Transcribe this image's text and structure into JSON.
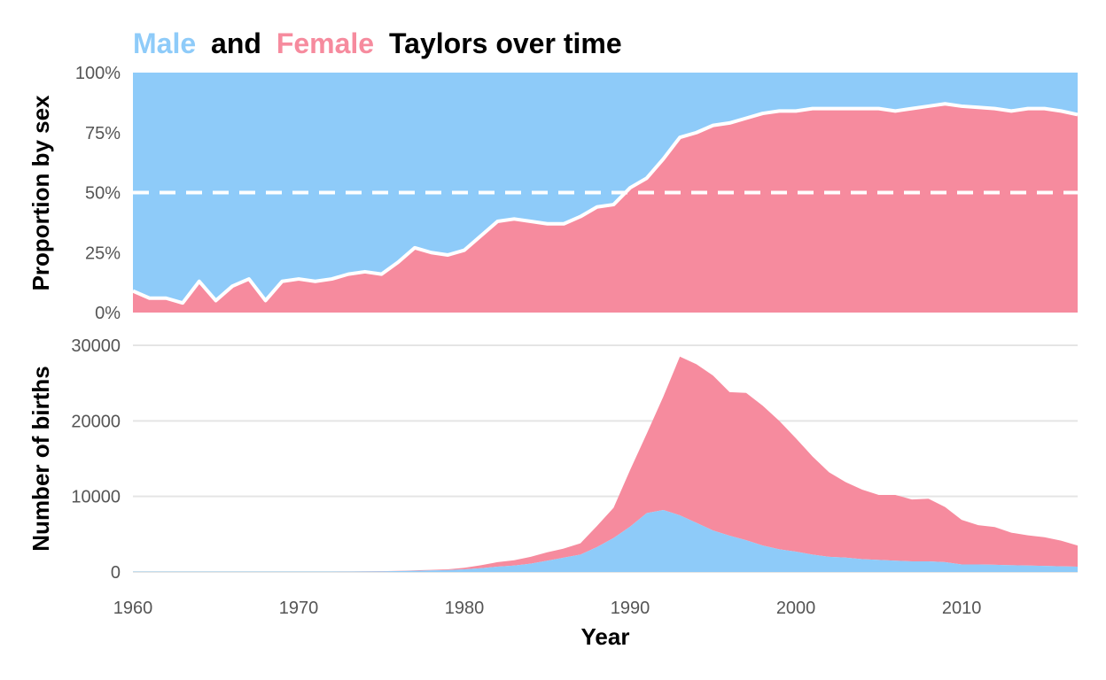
{
  "title": {
    "male_word": "Male",
    "and_word": "and",
    "female_word": "Female",
    "rest": "Taylors over time"
  },
  "colors": {
    "male": "#8ECBF9",
    "female": "#F68B9E",
    "text": "#000000",
    "tick": "#555555",
    "grid": "#E5E5E5",
    "divider": "#FFFFFF"
  },
  "chart_data": [
    {
      "type": "area",
      "stacked": true,
      "ylabel": "Proportion by sex",
      "ylim": [
        0,
        1
      ],
      "yticks": [
        0,
        0.25,
        0.5,
        0.75,
        1
      ],
      "ytick_labels": [
        "0%",
        "25%",
        "50%",
        "75%",
        "100%"
      ],
      "reference_line": {
        "y": 0.5,
        "style": "dashed",
        "color": "#FFFFFF"
      },
      "x": [
        1960,
        1961,
        1962,
        1963,
        1964,
        1965,
        1966,
        1967,
        1968,
        1969,
        1970,
        1971,
        1972,
        1973,
        1974,
        1975,
        1976,
        1977,
        1978,
        1979,
        1980,
        1981,
        1982,
        1983,
        1984,
        1985,
        1986,
        1987,
        1988,
        1989,
        1990,
        1991,
        1992,
        1993,
        1994,
        1995,
        1996,
        1997,
        1998,
        1999,
        2000,
        2001,
        2002,
        2003,
        2004,
        2005,
        2006,
        2007,
        2008,
        2009,
        2010,
        2011,
        2012,
        2013,
        2014,
        2015,
        2016,
        2017
      ],
      "series": [
        {
          "sex": "Female",
          "values": [
            0.09,
            0.06,
            0.06,
            0.04,
            0.13,
            0.05,
            0.11,
            0.14,
            0.05,
            0.13,
            0.14,
            0.13,
            0.14,
            0.16,
            0.17,
            0.16,
            0.21,
            0.27,
            0.25,
            0.24,
            0.26,
            0.32,
            0.38,
            0.39,
            0.38,
            0.37,
            0.37,
            0.4,
            0.44,
            0.45,
            0.52,
            0.56,
            0.64,
            0.73,
            0.75,
            0.78,
            0.79,
            0.81,
            0.83,
            0.84,
            0.84,
            0.85,
            0.85,
            0.85,
            0.85,
            0.85,
            0.84,
            0.85,
            0.86,
            0.87,
            0.86,
            0.855,
            0.85,
            0.84,
            0.85,
            0.85,
            0.84,
            0.825
          ]
        },
        {
          "sex": "Male",
          "values": [
            0.91,
            0.94,
            0.94,
            0.96,
            0.87,
            0.95,
            0.89,
            0.86,
            0.95,
            0.87,
            0.86,
            0.87,
            0.86,
            0.84,
            0.83,
            0.84,
            0.79,
            0.73,
            0.75,
            0.76,
            0.74,
            0.68,
            0.62,
            0.61,
            0.62,
            0.63,
            0.63,
            0.6,
            0.56,
            0.55,
            0.48,
            0.44,
            0.36,
            0.27,
            0.25,
            0.22,
            0.21,
            0.19,
            0.17,
            0.16,
            0.16,
            0.15,
            0.15,
            0.15,
            0.15,
            0.15,
            0.16,
            0.15,
            0.14,
            0.13,
            0.14,
            0.145,
            0.15,
            0.16,
            0.15,
            0.15,
            0.16,
            0.175
          ]
        }
      ]
    },
    {
      "type": "area",
      "stacked": true,
      "xlabel": "Year",
      "ylabel": "Number of births",
      "xlim": [
        1960,
        2017
      ],
      "xticks": [
        1960,
        1970,
        1980,
        1990,
        2000,
        2010
      ],
      "ylim": [
        0,
        30000
      ],
      "yticks": [
        0,
        10000,
        20000,
        30000
      ],
      "ytick_labels": [
        "0",
        "10000",
        "20000",
        "30000"
      ],
      "grid": true,
      "x": [
        1960,
        1961,
        1962,
        1963,
        1964,
        1965,
        1966,
        1967,
        1968,
        1969,
        1970,
        1971,
        1972,
        1973,
        1974,
        1975,
        1976,
        1977,
        1978,
        1979,
        1980,
        1981,
        1982,
        1983,
        1984,
        1985,
        1986,
        1987,
        1988,
        1989,
        1990,
        1991,
        1992,
        1993,
        1994,
        1995,
        1996,
        1997,
        1998,
        1999,
        2000,
        2001,
        2002,
        2003,
        2004,
        2005,
        2006,
        2007,
        2008,
        2009,
        2010,
        2011,
        2012,
        2013,
        2014,
        2015,
        2016,
        2017
      ],
      "series": [
        {
          "sex": "Male",
          "values": [
            40,
            40,
            40,
            40,
            40,
            40,
            40,
            40,
            40,
            40,
            40,
            40,
            45,
            50,
            60,
            80,
            120,
            160,
            200,
            250,
            350,
            500,
            700,
            850,
            1100,
            1500,
            1900,
            2300,
            3300,
            4500,
            6000,
            7800,
            8200,
            7500,
            6500,
            5500,
            4800,
            4200,
            3500,
            3000,
            2700,
            2300,
            2000,
            1900,
            1700,
            1600,
            1500,
            1400,
            1400,
            1300,
            1000,
            1000,
            950,
            900,
            850,
            800,
            750,
            700
          ]
        },
        {
          "sex": "Female",
          "values": [
            5,
            5,
            5,
            5,
            5,
            5,
            5,
            5,
            5,
            5,
            5,
            5,
            5,
            10,
            15,
            20,
            30,
            60,
            80,
            100,
            200,
            400,
            600,
            700,
            900,
            1100,
            1200,
            1500,
            2800,
            4000,
            7500,
            10500,
            15000,
            21000,
            21000,
            20500,
            19000,
            19500,
            18500,
            17000,
            15000,
            13000,
            11200,
            10000,
            9200,
            8600,
            8700,
            8200,
            8300,
            7300,
            5900,
            5200,
            5000,
            4300,
            4000,
            3800,
            3400,
            2800
          ]
        }
      ]
    }
  ]
}
